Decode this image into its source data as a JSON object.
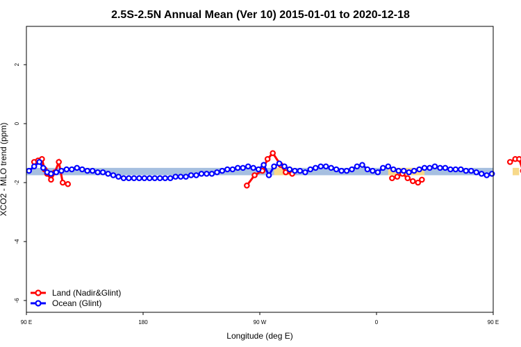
{
  "chart_data": {
    "type": "line",
    "title": "2.5S-2.5N Annual Mean (Ver 10)   2015-01-01 to 2020-12-18",
    "xlabel": "Longitude (deg E)",
    "ylabel": "XCO2 - MLO trend (ppm)",
    "xlim": [
      90,
      450
    ],
    "ylim": [
      -6.4,
      3.3
    ],
    "x_ticks": [
      {
        "value": 90,
        "label": "90 E"
      },
      {
        "value": 180,
        "label": "180"
      },
      {
        "value": 270,
        "label": "90 W"
      },
      {
        "value": 360,
        "label": "0"
      },
      {
        "value": 450,
        "label": "90 E"
      },
      {
        "value": 540,
        "label": "180"
      }
    ],
    "y_ticks": [
      {
        "value": 2,
        "label": "2"
      },
      {
        "value": 0,
        "label": "0"
      },
      {
        "value": -2,
        "label": "-2"
      },
      {
        "value": -4,
        "label": "-4"
      },
      {
        "value": -6,
        "label": "-6"
      }
    ],
    "band": {
      "low": -1.75,
      "high": -1.5,
      "ocean_color": "#a6bfe0",
      "land_color": "#f7d98a"
    },
    "land_spans": [
      [
        281,
        296
      ],
      [
        369,
        397
      ],
      [
        465,
        470
      ]
    ],
    "legend": {
      "position": "bottom-left"
    },
    "grid": false,
    "series": [
      {
        "name": "Land (Nadir&Glint)",
        "color": "#ff0000",
        "segments": [
          [
            [
              96,
              -1.3
            ],
            [
              99,
              -1.25
            ],
            [
              102,
              -1.2
            ],
            [
              104,
              -1.55
            ],
            [
              106,
              -1.7
            ],
            [
              109,
              -1.9
            ],
            [
              112,
              -1.65
            ],
            [
              115,
              -1.3
            ],
            [
              118,
              -2.0
            ],
            [
              122,
              -2.05
            ]
          ],
          [
            [
              260,
              -2.1
            ],
            [
              266,
              -1.75
            ],
            [
              272,
              -1.6
            ],
            [
              276,
              -1.2
            ],
            [
              280,
              -1.0
            ],
            [
              286,
              -1.4
            ],
            [
              290,
              -1.65
            ],
            [
              295,
              -1.7
            ]
          ],
          [
            [
              372,
              -1.85
            ],
            [
              376,
              -1.8
            ],
            [
              380,
              -1.7
            ],
            [
              384,
              -1.85
            ],
            [
              388,
              -1.95
            ],
            [
              392,
              -2.0
            ],
            [
              395,
              -1.9
            ]
          ],
          [
            [
              463,
              -1.3
            ],
            [
              467,
              -1.2
            ],
            [
              470,
              -1.2
            ],
            [
              473,
              -1.6
            ],
            [
              477,
              -1.9
            ],
            [
              480,
              -1.65
            ],
            [
              486,
              -1.3
            ],
            [
              489,
              -2.0
            ],
            [
              493,
              -2.05
            ]
          ]
        ]
      },
      {
        "name": "Ocean (Glint)",
        "color": "#0000ff",
        "x": [
          92,
          96,
          100,
          103,
          106,
          109,
          113,
          117,
          121,
          125,
          129,
          133,
          137,
          141,
          145,
          149,
          153,
          157,
          161,
          165,
          169,
          173,
          177,
          181,
          185,
          189,
          193,
          197,
          201,
          205,
          209,
          213,
          217,
          221,
          225,
          229,
          233,
          237,
          241,
          245,
          249,
          253,
          257,
          261,
          265,
          269,
          273,
          277,
          281,
          285,
          289,
          293,
          297,
          301,
          305,
          309,
          313,
          317,
          321,
          325,
          329,
          333,
          337,
          341,
          345,
          349,
          353,
          357,
          361,
          365,
          369,
          373,
          377,
          381,
          385,
          389,
          393,
          397,
          401,
          405,
          409,
          413,
          417,
          421,
          425,
          429,
          433,
          437,
          441,
          445,
          449
        ],
        "y": [
          -1.6,
          -1.45,
          -1.3,
          -1.5,
          -1.65,
          -1.7,
          -1.65,
          -1.6,
          -1.55,
          -1.55,
          -1.5,
          -1.55,
          -1.6,
          -1.6,
          -1.65,
          -1.65,
          -1.7,
          -1.75,
          -1.8,
          -1.85,
          -1.85,
          -1.85,
          -1.85,
          -1.85,
          -1.85,
          -1.85,
          -1.85,
          -1.85,
          -1.85,
          -1.8,
          -1.8,
          -1.8,
          -1.75,
          -1.75,
          -1.7,
          -1.7,
          -1.7,
          -1.65,
          -1.6,
          -1.55,
          -1.55,
          -1.5,
          -1.5,
          -1.45,
          -1.5,
          -1.55,
          -1.4,
          -1.75,
          -1.45,
          -1.35,
          -1.45,
          -1.55,
          -1.6,
          -1.6,
          -1.65,
          -1.55,
          -1.5,
          -1.45,
          -1.45,
          -1.5,
          -1.55,
          -1.6,
          -1.6,
          -1.55,
          -1.45,
          -1.4,
          -1.55,
          -1.6,
          -1.65,
          -1.5,
          -1.45,
          -1.55,
          -1.6,
          -1.6,
          -1.65,
          -1.6,
          -1.55,
          -1.5,
          -1.5,
          -1.45,
          -1.5,
          -1.5,
          -1.55,
          -1.55,
          -1.55,
          -1.6,
          -1.6,
          -1.65,
          -1.7,
          -1.75,
          -1.7
        ]
      }
    ]
  }
}
